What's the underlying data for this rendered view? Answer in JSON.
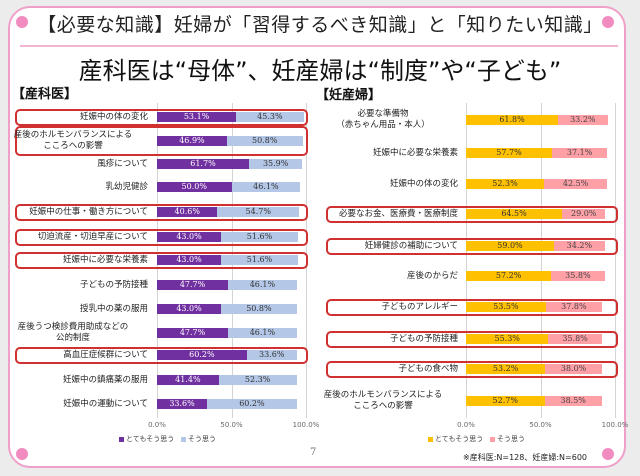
{
  "header": {
    "title": "【必要な知識】妊婦が「習得するべき知識」と「知りたい知識」",
    "subtitle": "産科医は“母体”、妊産婦は“制度”や“子ども”"
  },
  "footer": {
    "page_number": "7",
    "note": "※産科医:N=128、妊産婦:N=600"
  },
  "colors": {
    "obgyn_strong": "#7030a0",
    "obgyn_agree": "#b4c7e7",
    "pregnant_strong": "#ffc000",
    "pregnant_agree": "#ff9fa6",
    "highlight": "#d03030",
    "accent_pink": "#f28cc0"
  },
  "chart_data": [
    {
      "type": "bar",
      "orientation": "horizontal",
      "stacked": true,
      "title": "【産科医】",
      "categories": [
        "妊娠中の体の変化",
        "産後のホルモンバランスによる\nこころへの影響",
        "風疹について",
        "乳幼児健診",
        "妊娠中の仕事・働き方について",
        "切迫流産・切迫早産について",
        "妊娠中に必要な栄養素",
        "子どもの予防接種",
        "授乳中の薬の服用",
        "産後うつ検診費用助成などの\n公的制度",
        "高血圧症候群について",
        "妊娠中の鎮痛薬の服用",
        "妊娠中の運動について"
      ],
      "highlighted": [
        true,
        true,
        false,
        false,
        true,
        true,
        true,
        false,
        false,
        false,
        true,
        false,
        false
      ],
      "series": [
        {
          "name": "とてもそう思う",
          "values": [
            53.1,
            46.9,
            61.7,
            50.0,
            40.6,
            43.0,
            43.0,
            47.7,
            43.0,
            47.7,
            60.2,
            41.4,
            33.6
          ]
        },
        {
          "name": "そう思う",
          "values": [
            45.3,
            50.8,
            35.9,
            46.1,
            54.7,
            51.6,
            51.6,
            46.1,
            50.8,
            46.1,
            33.6,
            52.3,
            60.2
          ]
        }
      ],
      "xlim": [
        0,
        100
      ],
      "xticks": [
        "0.0%",
        "50.0%",
        "100.0%"
      ],
      "grid": true,
      "legend": "bottom"
    },
    {
      "type": "bar",
      "orientation": "horizontal",
      "stacked": true,
      "title": "【妊産婦】",
      "categories": [
        "必要な準備物\n（赤ちゃん用品・本人）",
        "妊娠中に必要な栄養素",
        "妊娠中の体の変化",
        "必要なお金、医療費・医療制度",
        "妊婦健診の補助について",
        "産後のからだ",
        "子どものアレルギー",
        "子どもの予防接種",
        "子どもの食べ物",
        "産後のホルモンバランスによる\nこころへの影響"
      ],
      "highlighted": [
        false,
        false,
        false,
        true,
        true,
        false,
        true,
        true,
        true,
        false
      ],
      "series": [
        {
          "name": "とてもそう思う",
          "values": [
            61.8,
            57.7,
            52.3,
            64.5,
            59.0,
            57.2,
            53.5,
            55.3,
            53.2,
            52.7
          ]
        },
        {
          "name": "そう思う",
          "values": [
            33.2,
            37.1,
            42.5,
            29.0,
            34.2,
            35.8,
            37.8,
            35.8,
            38.0,
            38.5
          ]
        }
      ],
      "xlim": [
        0,
        100
      ],
      "xticks": [
        "0.0%",
        "50.0%",
        "100.0%"
      ],
      "grid": true,
      "legend": "bottom"
    }
  ]
}
